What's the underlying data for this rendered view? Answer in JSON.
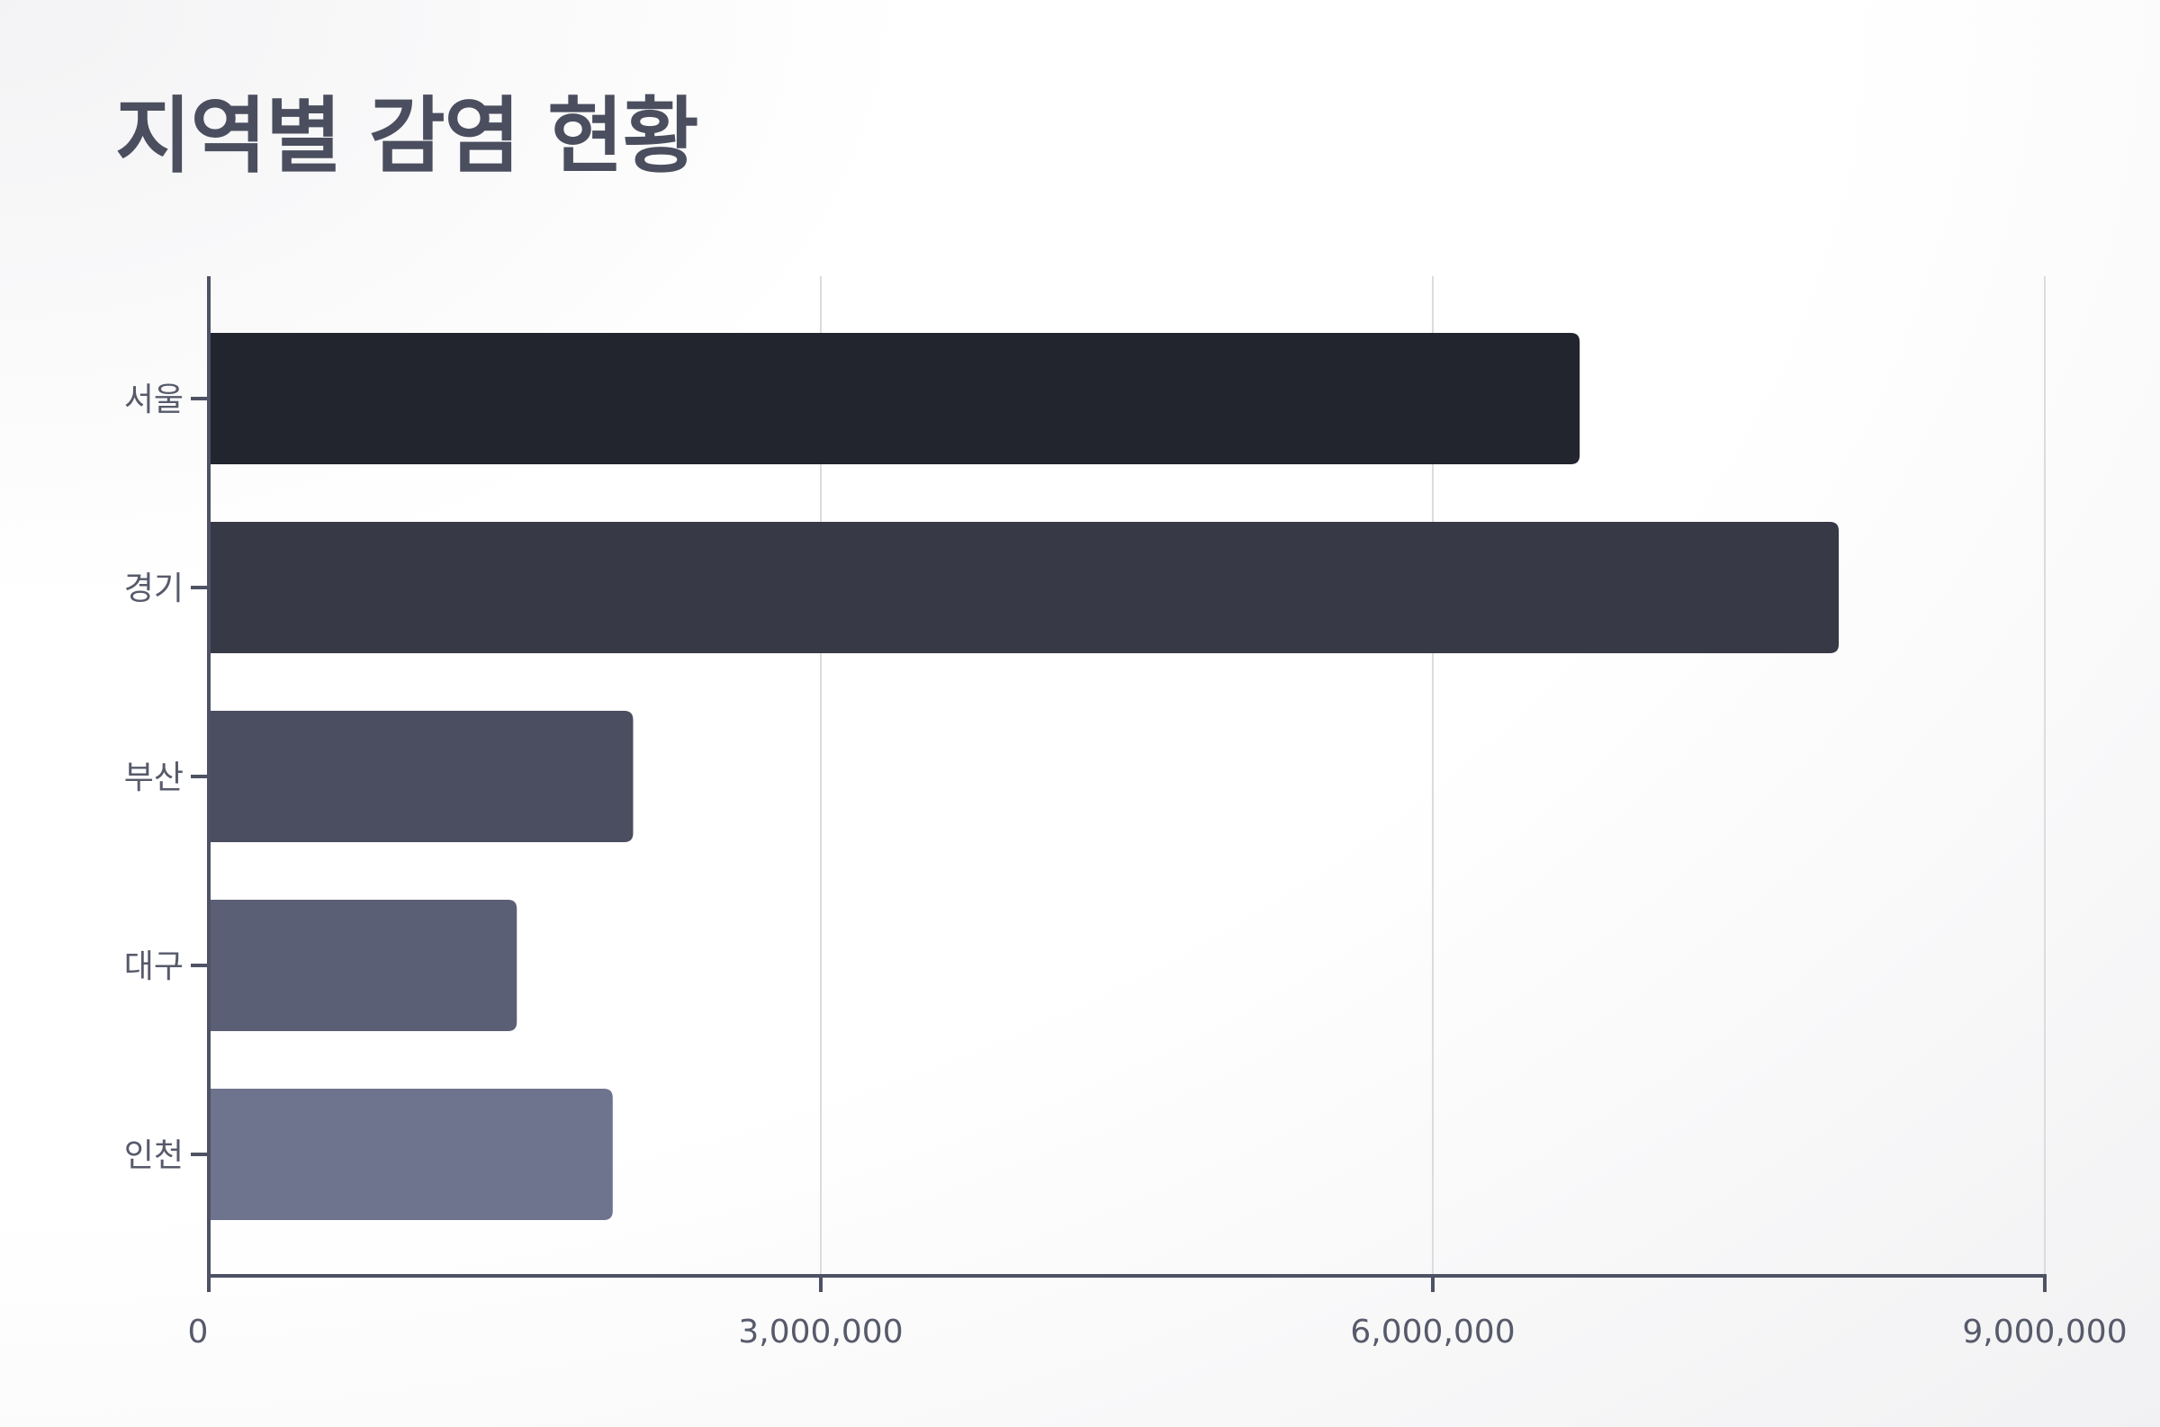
{
  "chart_data": {
    "type": "bar",
    "orientation": "horizontal",
    "title": "지역별 감염 현황",
    "xlabel": "",
    "ylabel": "",
    "categories": [
      "서울",
      "경기",
      "부산",
      "대구",
      "인천"
    ],
    "values": [
      6720000,
      7990000,
      2080000,
      1510000,
      1980000
    ],
    "bar_colors": [
      "#22252e",
      "#373946",
      "#4b4e60",
      "#5b5f75",
      "#6e738e"
    ],
    "xlim": [
      0,
      9000000
    ],
    "xticks": [
      0,
      3000000,
      6000000,
      9000000
    ],
    "xtick_labels": [
      "0",
      "3,000,000",
      "6,000,000",
      "9,000,000"
    ],
    "grid": "vertical",
    "legend": "none"
  }
}
